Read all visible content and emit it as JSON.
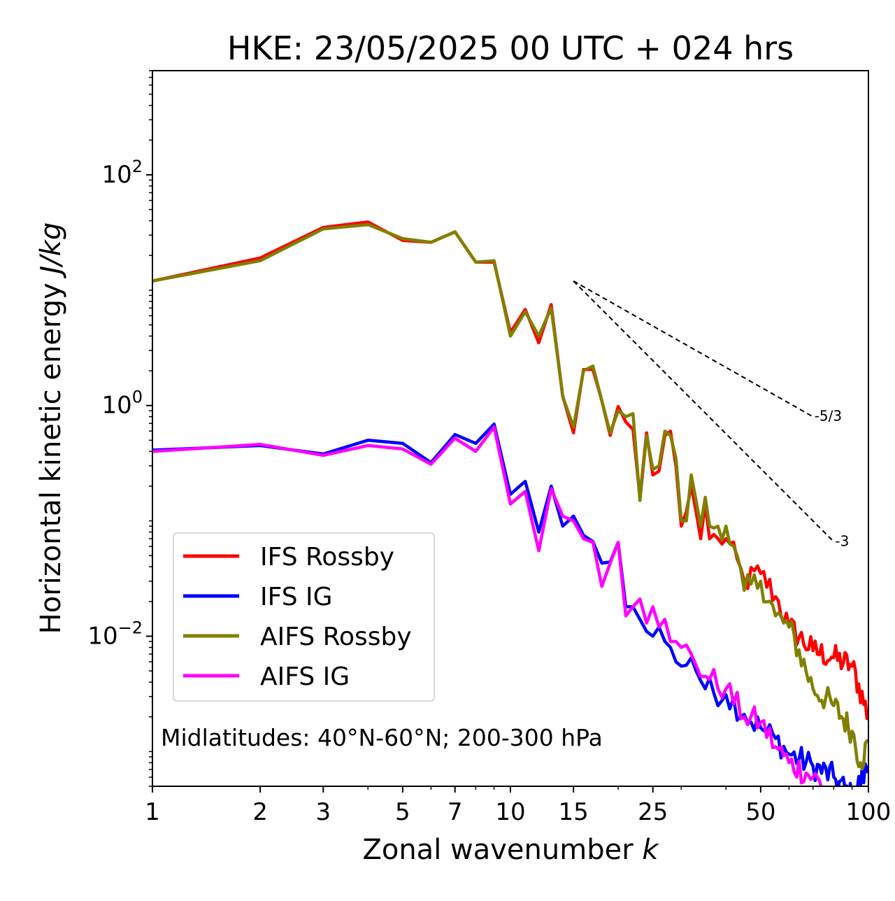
{
  "chart_data": {
    "type": "line",
    "title": "HKE: 23/05/2025 00 UTC + 024 hrs",
    "xlabel_text": "Zonal wavenumber ",
    "xlabel_math": "k",
    "ylabel_text": "Horizontal kinetic energy ",
    "ylabel_math": "J/kg",
    "x_scale": "log",
    "y_scale": "log",
    "xlim": [
      1,
      100
    ],
    "ylim": [
      0.0005,
      800
    ],
    "x_ticks": [
      1,
      2,
      3,
      5,
      7,
      10,
      15,
      25,
      50,
      100
    ],
    "x_tick_labels": [
      "1",
      "2",
      "3",
      "5",
      "7",
      "10",
      "15",
      "25",
      "50",
      "100"
    ],
    "y_ticks": [
      {
        "value": 100,
        "base": "10",
        "exp": "2"
      },
      {
        "value": 1,
        "base": "10",
        "exp": "0"
      },
      {
        "value": 0.01,
        "base": "10",
        "exp": "−2"
      }
    ],
    "grid": false,
    "legend_position": "lower-left",
    "annotation": "Midlatitudes: 40°N-60°N; 200-300 hPa",
    "reference_slopes": [
      {
        "label": "-5/3",
        "x": [
          15,
          70
        ],
        "y": [
          12.0,
          0.8
        ]
      },
      {
        "label": "-3",
        "x": [
          15,
          80
        ],
        "y": [
          12.0,
          0.066
        ]
      }
    ],
    "series": [
      {
        "name": "IFS Rossby",
        "color": "#ff0000",
        "anchors": [
          [
            1,
            12.0
          ],
          [
            2,
            19.0
          ],
          [
            3,
            35.0
          ],
          [
            4,
            39.0
          ],
          [
            5,
            27.0
          ],
          [
            6,
            26.0
          ],
          [
            7,
            32.0
          ],
          [
            8,
            17.5
          ],
          [
            9,
            17.5
          ],
          [
            10,
            4.3
          ],
          [
            11,
            6.8
          ],
          [
            12,
            3.5
          ],
          [
            13,
            7.5
          ],
          [
            14,
            1.2
          ],
          [
            15,
            0.58
          ],
          [
            16,
            2.05
          ],
          [
            17,
            2.05
          ],
          [
            18,
            1.1
          ],
          [
            19,
            0.55
          ],
          [
            20,
            0.98
          ],
          [
            21,
            0.72
          ],
          [
            22,
            0.62
          ],
          [
            23,
            0.16
          ],
          [
            24,
            0.58
          ],
          [
            25,
            0.25
          ],
          [
            26,
            0.27
          ],
          [
            27,
            0.55
          ],
          [
            28,
            0.6
          ],
          [
            29,
            0.3
          ],
          [
            30,
            0.09
          ],
          [
            31,
            0.12
          ],
          [
            32,
            0.2
          ],
          [
            33,
            0.12
          ],
          [
            34,
            0.07
          ],
          [
            35,
            0.14
          ],
          [
            36,
            0.07
          ],
          [
            38,
            0.07
          ],
          [
            40,
            0.07
          ],
          [
            45,
            0.03
          ],
          [
            50,
            0.035
          ],
          [
            55,
            0.022
          ],
          [
            60,
            0.012
          ],
          [
            70,
            0.0075
          ],
          [
            80,
            0.0065
          ],
          [
            90,
            0.0055
          ],
          [
            100,
            0.002
          ]
        ]
      },
      {
        "name": "IFS IG",
        "color": "#0000ff",
        "anchors": [
          [
            1,
            0.41
          ],
          [
            2,
            0.45
          ],
          [
            3,
            0.38
          ],
          [
            4,
            0.5
          ],
          [
            5,
            0.47
          ],
          [
            6,
            0.32
          ],
          [
            7,
            0.56
          ],
          [
            8,
            0.47
          ],
          [
            9,
            0.69
          ],
          [
            10,
            0.17
          ],
          [
            11,
            0.22
          ],
          [
            12,
            0.08
          ],
          [
            13,
            0.2
          ],
          [
            14,
            0.09
          ],
          [
            15,
            0.11
          ],
          [
            16,
            0.075
          ],
          [
            17,
            0.066
          ],
          [
            18,
            0.043
          ],
          [
            19,
            0.044
          ],
          [
            20,
            0.065
          ],
          [
            21,
            0.018
          ],
          [
            22,
            0.018
          ],
          [
            23,
            0.014
          ],
          [
            24,
            0.011
          ],
          [
            25,
            0.01
          ],
          [
            26,
            0.012
          ],
          [
            27,
            0.009
          ],
          [
            28,
            0.008
          ],
          [
            29,
            0.006
          ],
          [
            30,
            0.0055
          ],
          [
            32,
            0.0065
          ],
          [
            35,
            0.0035
          ],
          [
            40,
            0.0031
          ],
          [
            45,
            0.0021
          ],
          [
            50,
            0.0016
          ],
          [
            55,
            0.0013
          ],
          [
            60,
            0.00095
          ],
          [
            70,
            0.00075
          ],
          [
            80,
            0.0006
          ],
          [
            90,
            0.0004
          ],
          [
            100,
            0.00075
          ]
        ]
      },
      {
        "name": "AIFS Rossby",
        "color": "#808000",
        "anchors": [
          [
            1,
            12.0
          ],
          [
            2,
            18.0
          ],
          [
            3,
            34.0
          ],
          [
            4,
            37.0
          ],
          [
            5,
            28.0
          ],
          [
            6,
            26.0
          ],
          [
            7,
            32.0
          ],
          [
            8,
            17.5
          ],
          [
            9,
            18.0
          ],
          [
            10,
            4.0
          ],
          [
            11,
            6.5
          ],
          [
            12,
            4.0
          ],
          [
            13,
            7.0
          ],
          [
            14,
            1.2
          ],
          [
            15,
            0.65
          ],
          [
            16,
            2.0
          ],
          [
            17,
            2.2
          ],
          [
            18,
            1.1
          ],
          [
            19,
            0.58
          ],
          [
            20,
            0.9
          ],
          [
            21,
            0.8
          ],
          [
            22,
            0.85
          ],
          [
            23,
            0.15
          ],
          [
            24,
            0.55
          ],
          [
            25,
            0.28
          ],
          [
            26,
            0.3
          ],
          [
            27,
            0.6
          ],
          [
            28,
            0.55
          ],
          [
            29,
            0.35
          ],
          [
            30,
            0.1
          ],
          [
            31,
            0.1
          ],
          [
            32,
            0.25
          ],
          [
            33,
            0.15
          ],
          [
            34,
            0.09
          ],
          [
            35,
            0.16
          ],
          [
            36,
            0.09
          ],
          [
            38,
            0.09
          ],
          [
            40,
            0.09
          ],
          [
            45,
            0.025
          ],
          [
            50,
            0.03
          ],
          [
            55,
            0.015
          ],
          [
            60,
            0.012
          ],
          [
            70,
            0.0035
          ],
          [
            80,
            0.0025
          ],
          [
            90,
            0.0015
          ],
          [
            95,
            0.0008
          ],
          [
            100,
            0.0012
          ]
        ]
      },
      {
        "name": "AIFS IG",
        "color": "#ff00ff",
        "anchors": [
          [
            1,
            0.4
          ],
          [
            2,
            0.46
          ],
          [
            3,
            0.37
          ],
          [
            4,
            0.45
          ],
          [
            5,
            0.42
          ],
          [
            6,
            0.31
          ],
          [
            7,
            0.52
          ],
          [
            8,
            0.4
          ],
          [
            9,
            0.65
          ],
          [
            10,
            0.14
          ],
          [
            11,
            0.18
          ],
          [
            12,
            0.055
          ],
          [
            13,
            0.19
          ],
          [
            14,
            0.11
          ],
          [
            15,
            0.1
          ],
          [
            16,
            0.07
          ],
          [
            17,
            0.065
          ],
          [
            18,
            0.027
          ],
          [
            19,
            0.043
          ],
          [
            20,
            0.065
          ],
          [
            21,
            0.015
          ],
          [
            22,
            0.018
          ],
          [
            23,
            0.021
          ],
          [
            24,
            0.013
          ],
          [
            25,
            0.018
          ],
          [
            26,
            0.012
          ],
          [
            27,
            0.014
          ],
          [
            28,
            0.009
          ],
          [
            29,
            0.009
          ],
          [
            30,
            0.008
          ],
          [
            32,
            0.007
          ],
          [
            35,
            0.0045
          ],
          [
            40,
            0.0035
          ],
          [
            45,
            0.002
          ],
          [
            50,
            0.0018
          ],
          [
            55,
            0.0011
          ],
          [
            60,
            0.0008
          ],
          [
            70,
            0.0006
          ],
          [
            75,
            0.0005
          ]
        ]
      }
    ]
  }
}
